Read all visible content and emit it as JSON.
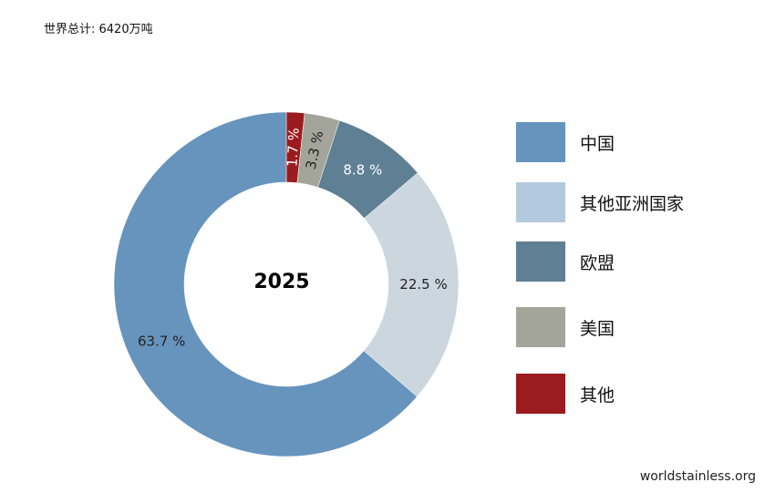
{
  "header": {
    "note": "世界总计: 6420万吨"
  },
  "footer": {
    "source": "worldstainless.org"
  },
  "chart_data": {
    "type": "pie",
    "donut": true,
    "center_label": "2025",
    "start_angle_deg": 0,
    "direction": "clockwise",
    "categories": [
      "中国",
      "其他亚洲国家",
      "欧盟",
      "美国",
      "其他"
    ],
    "slices": [
      {
        "category": "其他",
        "value": 1.7,
        "label": "1.7 %",
        "color": "#9b1b1e",
        "label_color": "#ffffff",
        "rotated_label": true
      },
      {
        "category": "美国",
        "value": 3.3,
        "label": "3.3 %",
        "color": "#a4a59a",
        "label_color": "#222222",
        "rotated_label": true
      },
      {
        "category": "欧盟",
        "value": 8.8,
        "label": "8.8 %",
        "color": "#5e7f94",
        "label_color": "#ffffff",
        "rotated_label": false
      },
      {
        "category": "其他亚洲国家",
        "value": 22.5,
        "label": "22.5 %",
        "color": "#cbd6df",
        "label_color": "#222222",
        "rotated_label": false
      },
      {
        "category": "中国",
        "value": 63.7,
        "label": "63.7 %",
        "color": "#6694bd",
        "label_color": "#222222",
        "rotated_label": false
      }
    ],
    "legend": {
      "placement": "right",
      "items": [
        {
          "label": "中国",
          "color": "#6694bd"
        },
        {
          "label": "其他亚洲国家",
          "color": "#b3c9de"
        },
        {
          "label": "欧盟",
          "color": "#5e7f94"
        },
        {
          "label": "美国",
          "color": "#a4a59a"
        },
        {
          "label": "其他",
          "color": "#9b1b1e"
        }
      ]
    }
  }
}
